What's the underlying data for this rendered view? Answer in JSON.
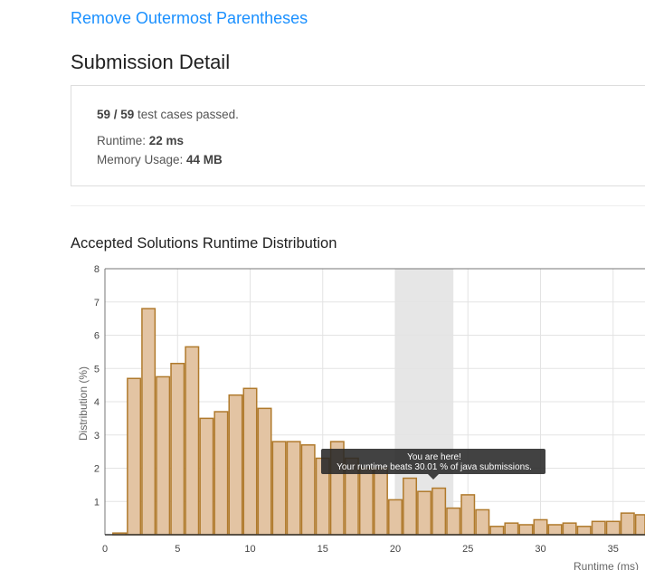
{
  "problem": {
    "title": "Remove Outermost Parentheses"
  },
  "page": {
    "title": "Submission Detail"
  },
  "details": {
    "cases": "59 / 59",
    "cases_suffix": " test cases passed.",
    "runtime_label": "Runtime: ",
    "runtime_value": "22 ms",
    "memory_label": "Memory Usage: ",
    "memory_value": "44 MB"
  },
  "chart_title": "Accepted Solutions Runtime Distribution",
  "chart_data": {
    "type": "bar",
    "xlabel": "Runtime (ms)",
    "ylabel": "Distribution (%)",
    "xlim": [
      0,
      37
    ],
    "ylim": [
      0,
      8
    ],
    "x_ticks": [
      0,
      5,
      10,
      15,
      20,
      25,
      30,
      35
    ],
    "y_ticks": [
      1,
      2,
      3,
      4,
      5,
      6,
      7,
      8
    ],
    "bar_color": "#e3c4a3",
    "bar_border": "#b07a2c",
    "highlight_range": [
      20,
      24
    ],
    "x": [
      1,
      2,
      3,
      4,
      5,
      6,
      7,
      8,
      9,
      10,
      11,
      12,
      13,
      14,
      15,
      16,
      17,
      18,
      19,
      20,
      21,
      22,
      23,
      24,
      25,
      26,
      27,
      28,
      29,
      30,
      31,
      32,
      33,
      34,
      35,
      36,
      37
    ],
    "values": [
      0.05,
      4.7,
      6.8,
      4.75,
      5.15,
      5.65,
      3.5,
      3.7,
      4.2,
      4.4,
      3.8,
      2.8,
      2.8,
      2.7,
      2.3,
      2.8,
      2.3,
      2.0,
      2.0,
      1.05,
      1.7,
      1.3,
      1.4,
      0.8,
      1.2,
      0.75,
      0.25,
      0.35,
      0.3,
      0.45,
      0.3,
      0.35,
      0.25,
      0.4,
      0.4,
      0.65,
      0.6
    ],
    "tooltip": {
      "line1": "You are here!",
      "line2": "Your runtime beats 30.01 % of java submissions."
    }
  }
}
